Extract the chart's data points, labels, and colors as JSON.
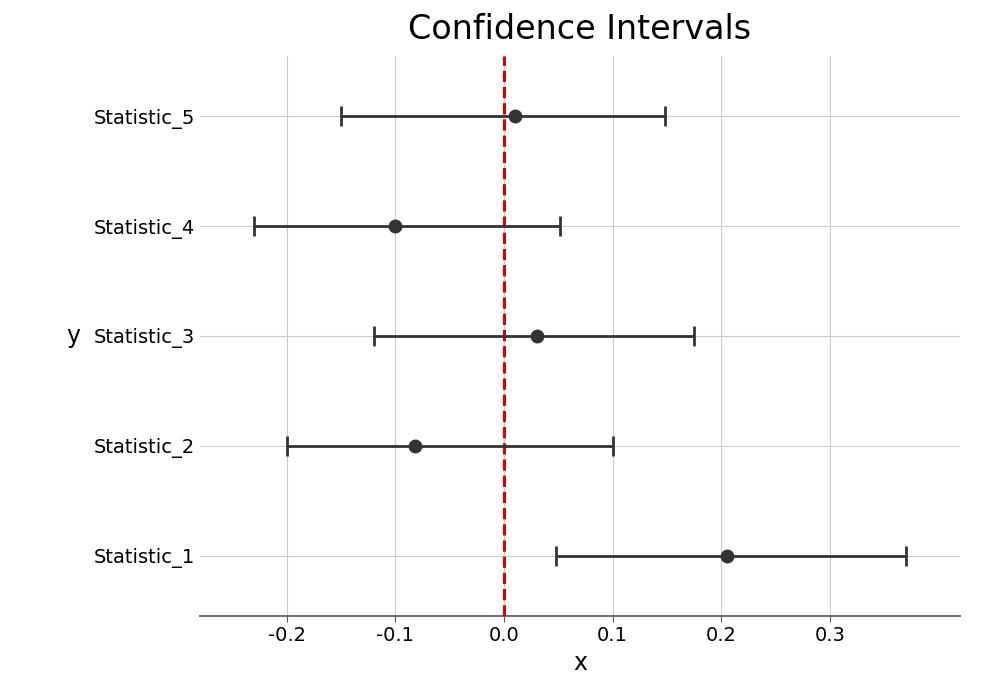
{
  "title": "Confidence Intervals",
  "xlabel": "x",
  "ylabel": "y",
  "categories": [
    "Statistic_1",
    "Statistic_2",
    "Statistic_3",
    "Statistic_4",
    "Statistic_5"
  ],
  "centers": [
    0.205,
    -0.082,
    0.03,
    -0.1,
    0.01
  ],
  "lower": [
    0.048,
    -0.2,
    -0.12,
    -0.23,
    -0.15
  ],
  "upper": [
    0.37,
    0.1,
    0.175,
    0.052,
    0.148
  ],
  "vline_x": 0.0,
  "vline_color": "#DD0000",
  "point_color": "#333333",
  "line_color": "#333333",
  "background_color": "#ffffff",
  "grid_color": "#cccccc",
  "title_fontsize": 24,
  "label_fontsize": 17,
  "tick_fontsize": 14,
  "capsize": 7,
  "linewidth": 2.0,
  "markersize": 9,
  "xlim": [
    -0.28,
    0.42
  ],
  "xticks": [
    -0.2,
    -0.1,
    0.0,
    0.1,
    0.2,
    0.3
  ]
}
